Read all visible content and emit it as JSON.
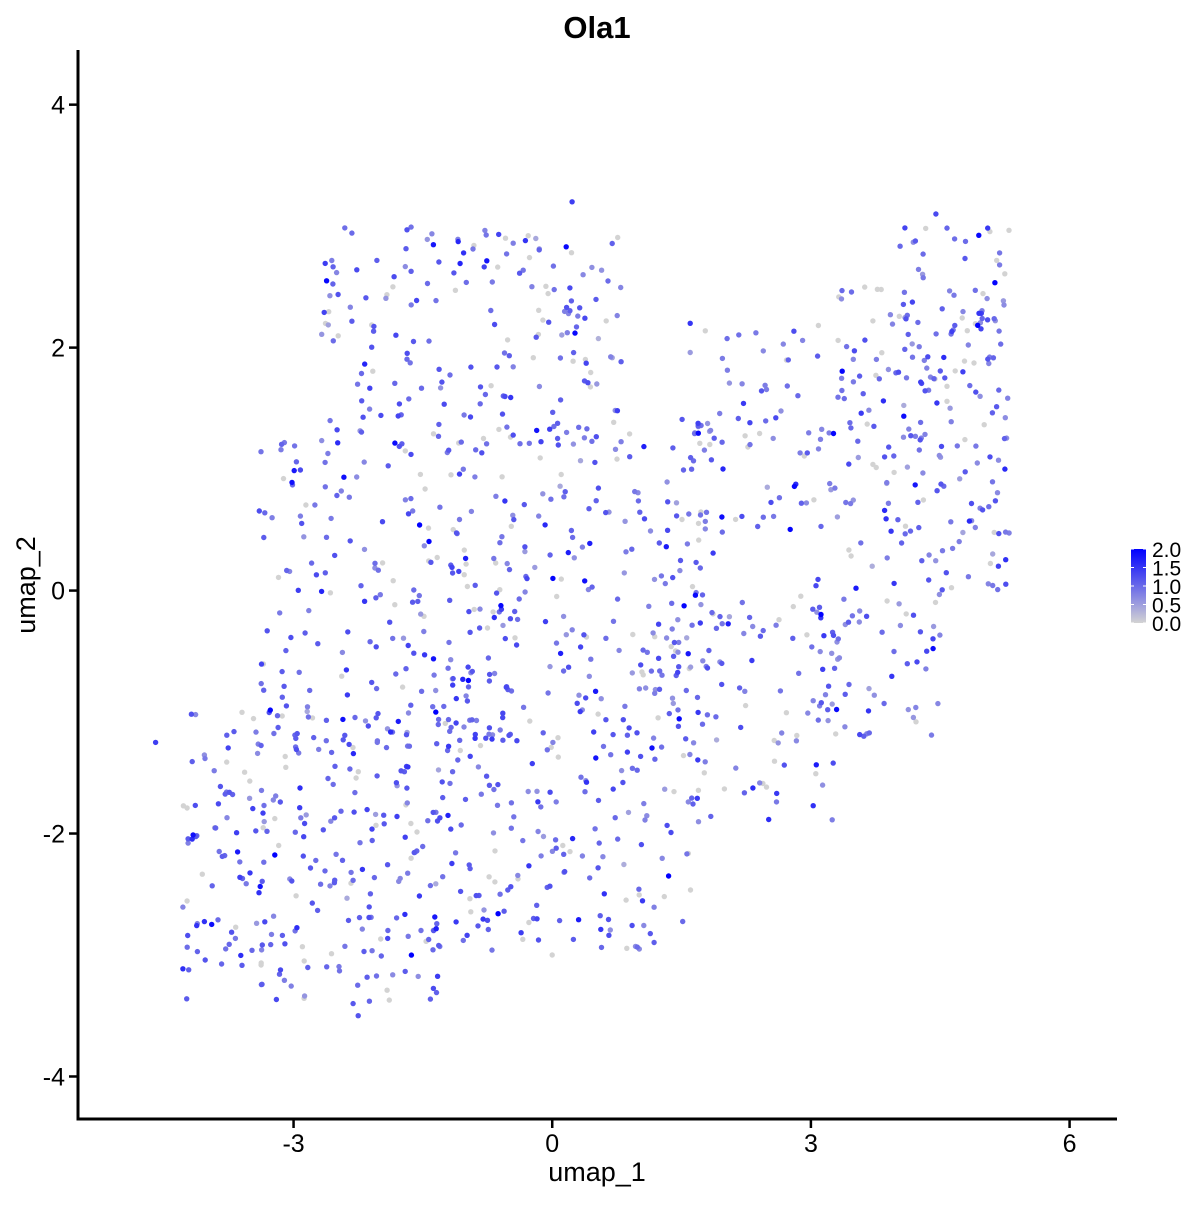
{
  "chart_data": {
    "type": "scatter",
    "title": "Ola1",
    "xlabel": "umap_1",
    "ylabel": "umap_2",
    "xlim": [
      -5.5,
      6.55
    ],
    "ylim": [
      -4.35,
      4.45
    ],
    "x_ticks": [
      -3,
      0,
      3,
      6
    ],
    "x_tick_labels": [
      "-3",
      "0",
      "3",
      "6"
    ],
    "y_ticks": [
      -4,
      -2,
      0,
      2,
      4
    ],
    "y_tick_labels": [
      "-4",
      "-2",
      "0",
      "2",
      "4"
    ],
    "grid": false,
    "color_scale": {
      "low_color": "#D3D3D3",
      "high_color": "#0000FF",
      "min": 0,
      "max": 2.0,
      "breaks": [
        0,
        0.5,
        1.0,
        1.5,
        2.0
      ],
      "break_labels": [
        "0.0",
        "0.5",
        "1.0",
        "1.5",
        "2.0"
      ],
      "legend_position": "right"
    },
    "highlight_points": [
      {
        "x": 0.23,
        "y": 3.2,
        "value": 1.4
      },
      {
        "x": 4.45,
        "y": 3.1,
        "value": 1.3
      },
      {
        "x": 1.35,
        "y": -2.35,
        "value": 2.0
      },
      {
        "x": -2.25,
        "y": -3.5,
        "value": 1.2
      },
      {
        "x": -4.6,
        "y": -1.25,
        "value": 1.4
      },
      {
        "x": -1.35,
        "y": -1.0,
        "value": 2.0
      },
      {
        "x": 1.6,
        "y": 2.2,
        "value": 1.5
      },
      {
        "x": 5.25,
        "y": 1.0,
        "value": 1.6
      },
      {
        "x": 0.0,
        "y": -3.0,
        "value": 0.0
      }
    ],
    "regions": [
      {
        "x_min": -4.3,
        "x_max": -1.3,
        "y_min": -3.4,
        "y_max": -1.0,
        "n": 260,
        "value_mean": 1.05
      },
      {
        "x_min": -3.4,
        "x_max": -0.4,
        "y_min": -1.3,
        "y_max": 1.3,
        "n": 220,
        "value_mean": 1.05
      },
      {
        "x_min": -2.7,
        "x_max": 0.8,
        "y_min": 1.2,
        "y_max": 3.0,
        "n": 190,
        "value_mean": 1.0
      },
      {
        "x_min": -1.4,
        "x_max": 1.7,
        "y_min": -3.0,
        "y_max": -0.6,
        "n": 210,
        "value_mean": 1.05
      },
      {
        "x_min": -0.6,
        "x_max": 2.0,
        "y_min": -0.7,
        "y_max": 1.4,
        "n": 150,
        "value_mean": 0.95
      },
      {
        "x_min": 1.0,
        "x_max": 3.4,
        "y_min": -1.9,
        "y_max": 0.0,
        "n": 120,
        "value_mean": 0.95
      },
      {
        "x_min": 1.3,
        "x_max": 3.4,
        "y_min": 0.5,
        "y_max": 2.2,
        "n": 80,
        "value_mean": 0.9
      },
      {
        "x_min": 3.0,
        "x_max": 4.5,
        "y_min": -1.2,
        "y_max": 0.3,
        "n": 60,
        "value_mean": 0.9
      },
      {
        "x_min": 3.3,
        "x_max": 5.3,
        "y_min": 0.0,
        "y_max": 2.5,
        "n": 170,
        "value_mean": 1.0
      },
      {
        "x_min": 4.0,
        "x_max": 5.3,
        "y_min": 1.5,
        "y_max": 3.0,
        "n": 60,
        "value_mean": 1.0
      }
    ]
  }
}
